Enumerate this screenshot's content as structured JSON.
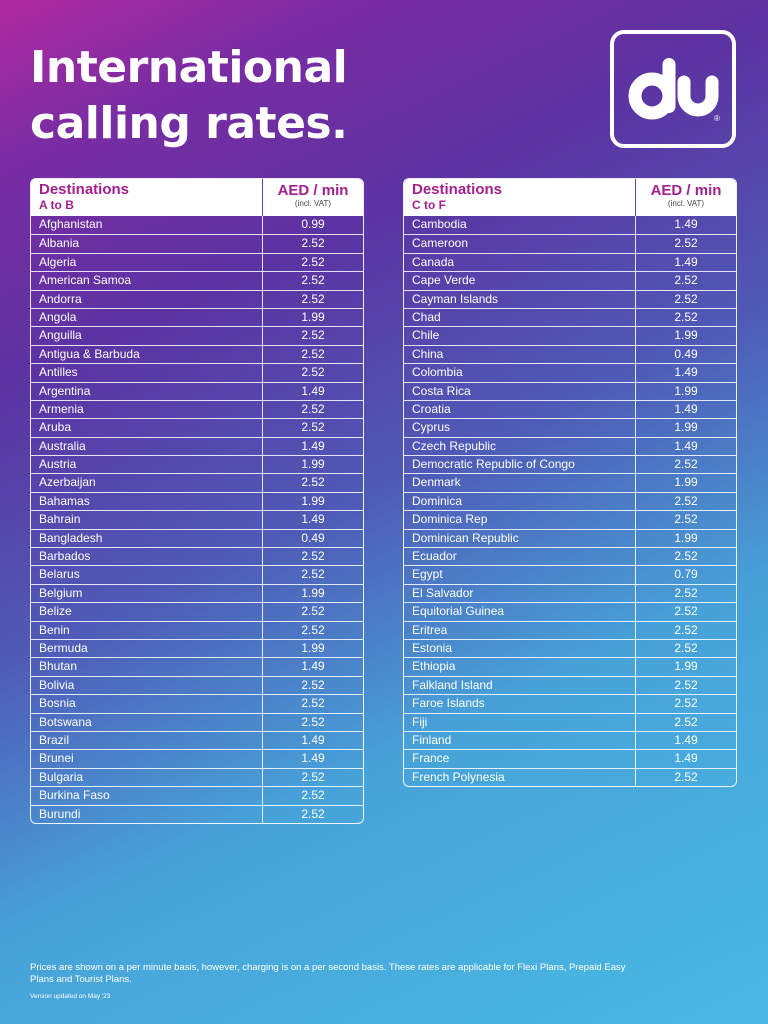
{
  "title": "International calling rates.",
  "logo_text": "du",
  "logo_reg": "®",
  "header": {
    "dest_label": "Destinations",
    "rate_label": "AED / min",
    "vat_note": "(incl. VAT)"
  },
  "tables": [
    {
      "range": "A to B",
      "rows": [
        {
          "name": "Afghanistan",
          "rate": "0.99"
        },
        {
          "name": "Albania",
          "rate": "2.52"
        },
        {
          "name": "Algeria",
          "rate": "2.52"
        },
        {
          "name": "American Samoa",
          "rate": "2.52"
        },
        {
          "name": "Andorra",
          "rate": "2.52"
        },
        {
          "name": "Angola",
          "rate": "1.99"
        },
        {
          "name": "Anguilla",
          "rate": "2.52"
        },
        {
          "name": "Antigua & Barbuda",
          "rate": "2.52"
        },
        {
          "name": "Antilles",
          "rate": "2.52"
        },
        {
          "name": "Argentina",
          "rate": "1.49"
        },
        {
          "name": "Armenia",
          "rate": "2.52"
        },
        {
          "name": "Aruba",
          "rate": "2.52"
        },
        {
          "name": "Australia",
          "rate": "1.49"
        },
        {
          "name": "Austria",
          "rate": "1.99"
        },
        {
          "name": "Azerbaijan",
          "rate": "2.52"
        },
        {
          "name": "Bahamas",
          "rate": "1.99"
        },
        {
          "name": "Bahrain",
          "rate": "1.49"
        },
        {
          "name": "Bangladesh",
          "rate": "0.49"
        },
        {
          "name": "Barbados",
          "rate": "2.52"
        },
        {
          "name": "Belarus",
          "rate": "2.52"
        },
        {
          "name": "Belgium",
          "rate": "1.99"
        },
        {
          "name": "Belize",
          "rate": "2.52"
        },
        {
          "name": "Benin",
          "rate": "2.52"
        },
        {
          "name": "Bermuda",
          "rate": "1.99"
        },
        {
          "name": "Bhutan",
          "rate": "1.49"
        },
        {
          "name": "Bolivia",
          "rate": "2.52"
        },
        {
          "name": "Bosnia",
          "rate": "2.52"
        },
        {
          "name": "Botswana",
          "rate": "2.52"
        },
        {
          "name": "Brazil",
          "rate": "1.49"
        },
        {
          "name": "Brunei",
          "rate": "1.49"
        },
        {
          "name": "Bulgaria",
          "rate": "2.52"
        },
        {
          "name": "Burkina Faso",
          "rate": "2.52"
        },
        {
          "name": "Burundi",
          "rate": "2.52"
        }
      ]
    },
    {
      "range": "C to F",
      "rows": [
        {
          "name": "Cambodia",
          "rate": "1.49"
        },
        {
          "name": "Cameroon",
          "rate": "2.52"
        },
        {
          "name": "Canada",
          "rate": "1.49"
        },
        {
          "name": "Cape Verde",
          "rate": "2.52"
        },
        {
          "name": "Cayman Islands",
          "rate": "2.52"
        },
        {
          "name": "Chad",
          "rate": "2.52"
        },
        {
          "name": "Chile",
          "rate": "1.99"
        },
        {
          "name": "China",
          "rate": "0.49"
        },
        {
          "name": "Colombia",
          "rate": "1.49"
        },
        {
          "name": "Costa Rica",
          "rate": "1.99"
        },
        {
          "name": "Croatia",
          "rate": "1.49"
        },
        {
          "name": "Cyprus",
          "rate": "1.99"
        },
        {
          "name": "Czech Republic",
          "rate": "1.49"
        },
        {
          "name": "Democratic Republic of Congo",
          "rate": "2.52"
        },
        {
          "name": "Denmark",
          "rate": "1.99"
        },
        {
          "name": "Dominica",
          "rate": "2.52"
        },
        {
          "name": "Dominica Rep",
          "rate": "2.52"
        },
        {
          "name": "Dominican Republic",
          "rate": "1.99"
        },
        {
          "name": "Ecuador",
          "rate": "2.52"
        },
        {
          "name": "Egypt",
          "rate": "0.79"
        },
        {
          "name": "El Salvador",
          "rate": "2.52"
        },
        {
          "name": "Equitorial Guinea",
          "rate": "2.52"
        },
        {
          "name": "Eritrea",
          "rate": "2.52"
        },
        {
          "name": "Estonia",
          "rate": "2.52"
        },
        {
          "name": "Ethiopia",
          "rate": "1.99"
        },
        {
          "name": "Falkland Island",
          "rate": "2.52"
        },
        {
          "name": "Faroe Islands",
          "rate": "2.52"
        },
        {
          "name": "Fiji",
          "rate": "2.52"
        },
        {
          "name": "Finland",
          "rate": "1.49"
        },
        {
          "name": "France",
          "rate": "1.49"
        },
        {
          "name": "French Polynesia",
          "rate": "2.52"
        }
      ]
    }
  ],
  "footnote": "Prices are shown on a per minute basis, however, charging is on a per second basis. These rates are applicable for Flexi Plans, Prepaid Easy Plans and Tourist Plans.",
  "version": "Version updated on May '23"
}
